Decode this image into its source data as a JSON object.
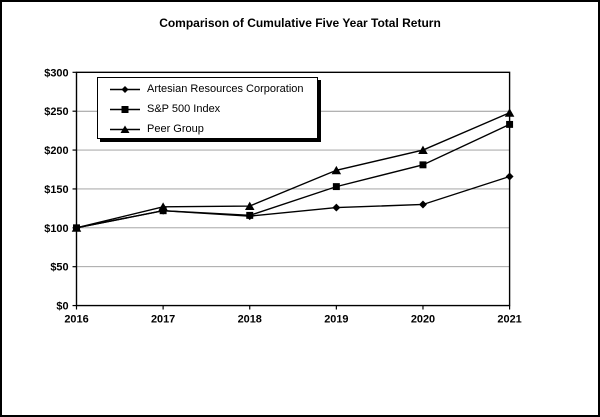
{
  "title": "Comparison of Cumulative Five Year Total Return",
  "chart_data": {
    "type": "line",
    "title": "Comparison of Cumulative Five Year Total Return",
    "x_labels": [
      "2016",
      "2017",
      "2018",
      "2019",
      "2020",
      "2021"
    ],
    "series": [
      {
        "name": "Artesian Resources Corporation",
        "marker": "diamond",
        "color": "#000000",
        "values": [
          100,
          122,
          115,
          126,
          130,
          166
        ]
      },
      {
        "name": "S&P 500 Index",
        "marker": "square",
        "color": "#000000",
        "values": [
          100,
          122,
          116,
          153,
          181,
          233
        ]
      },
      {
        "name": "Peer Group",
        "marker": "triangle",
        "color": "#000000",
        "values": [
          100,
          127,
          128,
          174,
          200,
          248
        ]
      }
    ],
    "ylim": [
      0,
      300
    ],
    "ytick_step": 50,
    "ytick_prefix": "$",
    "ytick_labels": [
      "$0",
      "$50",
      "$100",
      "$150",
      "$200",
      "$250",
      "$300"
    ],
    "grid": true,
    "grid_color": "#999999",
    "axis_color": "#000000",
    "background": "#ffffff",
    "legend_position": "top-left-inside"
  }
}
